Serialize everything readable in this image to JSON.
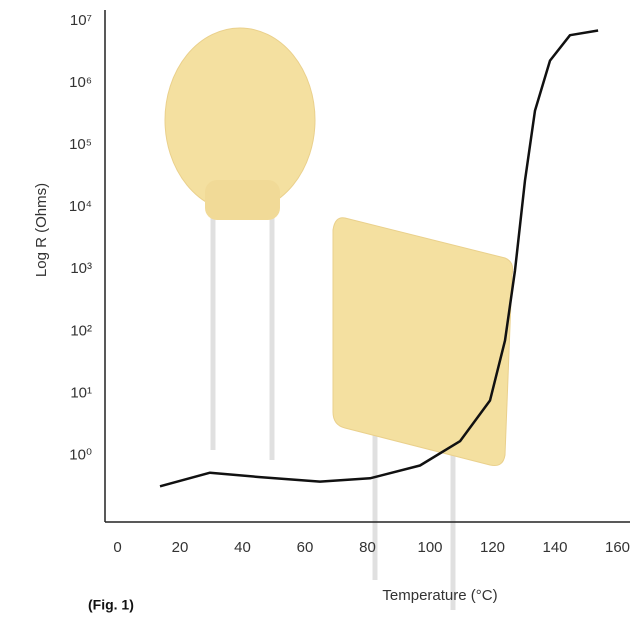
{
  "chart_data": {
    "type": "line",
    "ylabel": "Log R (Ohms)",
    "xlabel": "Temperature (°C)",
    "caption": "(Fig. 1)",
    "x": [
      13.6,
      29.6,
      45.6,
      64.8,
      80.8,
      96.8,
      109.6,
      119.2,
      124,
      127.2,
      130.4,
      133.6,
      138.4,
      144.8,
      153.8
    ],
    "series": [
      {
        "color": "#111111",
        "values": [
          0.32,
          0.53,
          0.45,
          0.38,
          0.43,
          0.69,
          1.7,
          7.7,
          71,
          960,
          27000,
          360000,
          2300000,
          5900000,
          7000000
        ]
      }
    ],
    "xlim": [
      -4,
      164
    ],
    "xticks": [
      0,
      20,
      40,
      60,
      80,
      100,
      120,
      140,
      160
    ],
    "ylim": [
      0.085,
      15000000
    ],
    "ylog": true,
    "yticks": [
      {
        "value": 1,
        "label": "10⁰"
      },
      {
        "value": 10,
        "label": "10¹"
      },
      {
        "value": 100,
        "label": "10²"
      },
      {
        "value": 1000,
        "label": "10³"
      },
      {
        "value": 10000,
        "label": "10⁴"
      },
      {
        "value": 100000,
        "label": "10⁵"
      },
      {
        "value": 1000000,
        "label": "10⁶"
      },
      {
        "value": 10000000,
        "label": "10⁷"
      }
    ]
  }
}
